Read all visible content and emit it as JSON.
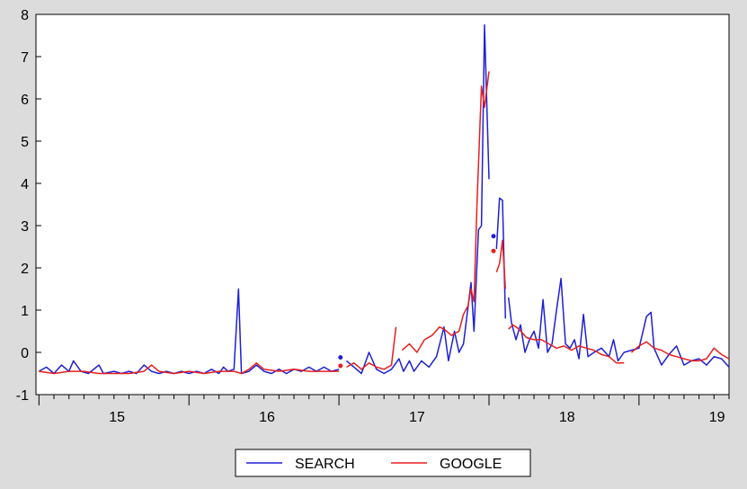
{
  "chart_data": {
    "type": "line",
    "title": "",
    "xlabel": "",
    "ylabel": "",
    "xlim": [
      14.48,
      19.1
    ],
    "ylim": [
      -1,
      8
    ],
    "xticks": [
      "15",
      "16",
      "17",
      "18",
      "19"
    ],
    "yticks": [
      "-1",
      "0",
      "1",
      "2",
      "3",
      "4",
      "5",
      "6",
      "7",
      "8"
    ],
    "grid": false,
    "legend_position": "bottom-center",
    "series": [
      {
        "name": "SEARCH",
        "color": "#1f1fd6",
        "points": [
          [
            14.5,
            -0.45
          ],
          [
            14.55,
            -0.35
          ],
          [
            14.6,
            -0.5
          ],
          [
            14.65,
            -0.3
          ],
          [
            14.7,
            -0.45
          ],
          [
            14.73,
            -0.2
          ],
          [
            14.78,
            -0.45
          ],
          [
            14.83,
            -0.5
          ],
          [
            14.9,
            -0.3
          ],
          [
            14.93,
            -0.5
          ],
          [
            15.0,
            -0.45
          ],
          [
            15.05,
            -0.5
          ],
          [
            15.1,
            -0.45
          ],
          [
            15.15,
            -0.5
          ],
          [
            15.2,
            -0.3
          ],
          [
            15.25,
            -0.45
          ],
          [
            15.3,
            -0.5
          ],
          [
            15.35,
            -0.45
          ],
          [
            15.4,
            -0.5
          ],
          [
            15.45,
            -0.45
          ],
          [
            15.5,
            -0.5
          ],
          [
            15.55,
            -0.45
          ],
          [
            15.6,
            -0.5
          ],
          [
            15.65,
            -0.4
          ],
          [
            15.7,
            -0.5
          ],
          [
            15.73,
            -0.35
          ],
          [
            15.76,
            -0.45
          ],
          [
            15.8,
            -0.4
          ],
          [
            15.83,
            1.5
          ],
          [
            15.85,
            -0.5
          ],
          [
            15.9,
            -0.45
          ],
          [
            15.95,
            -0.3
          ],
          [
            16.0,
            -0.45
          ],
          [
            16.05,
            -0.5
          ],
          [
            16.1,
            -0.4
          ],
          [
            16.15,
            -0.5
          ],
          [
            16.2,
            -0.4
          ],
          [
            16.25,
            -0.45
          ],
          [
            16.3,
            -0.35
          ],
          [
            16.35,
            -0.45
          ],
          [
            16.4,
            -0.35
          ],
          [
            16.45,
            -0.45
          ],
          [
            16.5,
            -0.4
          ],
          null,
          [
            16.55,
            -0.2
          ],
          [
            16.6,
            -0.35
          ],
          [
            16.65,
            -0.5
          ],
          [
            16.7,
            0.0
          ],
          [
            16.75,
            -0.4
          ],
          [
            16.8,
            -0.5
          ],
          [
            16.85,
            -0.4
          ],
          [
            16.9,
            -0.15
          ],
          [
            16.93,
            -0.45
          ],
          [
            16.97,
            -0.2
          ],
          [
            17.0,
            -0.45
          ],
          [
            17.05,
            -0.2
          ],
          [
            17.1,
            -0.35
          ],
          [
            17.15,
            -0.1
          ],
          [
            17.2,
            0.6
          ],
          [
            17.23,
            -0.2
          ],
          [
            17.27,
            0.5
          ],
          [
            17.3,
            0.0
          ],
          [
            17.33,
            0.2
          ],
          [
            17.38,
            1.65
          ],
          [
            17.4,
            0.5
          ],
          [
            17.43,
            2.9
          ],
          [
            17.45,
            3.0
          ],
          [
            17.47,
            7.75
          ],
          [
            17.5,
            4.1
          ],
          null,
          [
            17.55,
            2.45
          ],
          [
            17.57,
            3.65
          ],
          [
            17.59,
            3.6
          ],
          [
            17.61,
            0.8
          ],
          null,
          [
            17.63,
            1.3
          ],
          [
            17.65,
            0.7
          ],
          [
            17.68,
            0.3
          ],
          [
            17.71,
            0.65
          ],
          [
            17.74,
            0.0
          ],
          [
            17.77,
            0.3
          ],
          [
            17.8,
            0.5
          ],
          [
            17.83,
            0.1
          ],
          [
            17.86,
            1.25
          ],
          [
            17.89,
            0.0
          ],
          [
            17.92,
            0.2
          ],
          [
            17.95,
            1.0
          ],
          [
            17.98,
            1.75
          ],
          [
            18.01,
            0.2
          ],
          [
            18.04,
            0.1
          ],
          [
            18.07,
            0.3
          ],
          [
            18.1,
            -0.15
          ],
          [
            18.13,
            0.9
          ],
          [
            18.16,
            -0.1
          ],
          [
            18.2,
            0.0
          ],
          [
            18.25,
            0.1
          ],
          [
            18.3,
            -0.1
          ],
          [
            18.33,
            0.3
          ],
          [
            18.36,
            -0.2
          ],
          [
            18.4,
            0.0
          ],
          [
            18.45,
            0.05
          ],
          [
            18.5,
            0.1
          ],
          [
            18.55,
            0.85
          ],
          [
            18.58,
            0.95
          ],
          [
            18.6,
            0.1
          ],
          [
            18.65,
            -0.3
          ],
          [
            18.7,
            -0.05
          ],
          [
            18.75,
            0.15
          ],
          [
            18.8,
            -0.3
          ],
          [
            18.85,
            -0.2
          ],
          [
            18.9,
            -0.15
          ],
          [
            18.95,
            -0.3
          ],
          [
            19.0,
            -0.1
          ],
          [
            19.05,
            -0.15
          ],
          [
            19.1,
            -0.35
          ]
        ]
      },
      {
        "name": "GOOGLE",
        "color": "#e81e1e",
        "points": [
          [
            14.5,
            -0.45
          ],
          [
            14.6,
            -0.5
          ],
          [
            14.7,
            -0.45
          ],
          [
            14.8,
            -0.45
          ],
          [
            14.9,
            -0.5
          ],
          [
            15.0,
            -0.5
          ],
          [
            15.1,
            -0.5
          ],
          [
            15.2,
            -0.45
          ],
          [
            15.25,
            -0.3
          ],
          [
            15.3,
            -0.45
          ],
          [
            15.4,
            -0.5
          ],
          [
            15.5,
            -0.45
          ],
          [
            15.6,
            -0.5
          ],
          [
            15.7,
            -0.45
          ],
          [
            15.8,
            -0.45
          ],
          [
            15.85,
            -0.5
          ],
          [
            15.9,
            -0.4
          ],
          [
            15.95,
            -0.25
          ],
          [
            16.0,
            -0.4
          ],
          [
            16.1,
            -0.45
          ],
          [
            16.2,
            -0.4
          ],
          [
            16.3,
            -0.45
          ],
          [
            16.4,
            -0.45
          ],
          [
            16.5,
            -0.45
          ],
          null,
          [
            16.55,
            -0.35
          ],
          [
            16.6,
            -0.25
          ],
          [
            16.65,
            -0.4
          ],
          [
            16.7,
            -0.25
          ],
          [
            16.75,
            -0.35
          ],
          [
            16.8,
            -0.4
          ],
          [
            16.85,
            -0.3
          ],
          [
            16.88,
            0.6
          ],
          null,
          [
            16.92,
            0.05
          ],
          [
            16.97,
            0.2
          ],
          [
            17.02,
            0.0
          ],
          [
            17.07,
            0.3
          ],
          [
            17.12,
            0.4
          ],
          [
            17.17,
            0.6
          ],
          [
            17.2,
            0.55
          ],
          [
            17.25,
            0.4
          ],
          [
            17.3,
            0.5
          ],
          [
            17.33,
            0.9
          ],
          [
            17.36,
            1.1
          ],
          [
            17.38,
            1.5
          ],
          [
            17.4,
            1.2
          ],
          [
            17.42,
            3.5
          ],
          [
            17.45,
            6.3
          ],
          [
            17.47,
            5.8
          ],
          [
            17.5,
            6.65
          ],
          null,
          [
            17.55,
            1.9
          ],
          [
            17.57,
            2.1
          ],
          [
            17.59,
            2.65
          ],
          [
            17.61,
            1.5
          ],
          null,
          [
            17.63,
            0.55
          ],
          [
            17.66,
            0.65
          ],
          [
            17.7,
            0.55
          ],
          [
            17.75,
            0.35
          ],
          [
            17.8,
            0.3
          ],
          [
            17.85,
            0.3
          ],
          [
            17.9,
            0.2
          ],
          [
            17.95,
            0.1
          ],
          [
            18.0,
            0.15
          ],
          [
            18.05,
            0.05
          ],
          [
            18.1,
            0.15
          ],
          [
            18.15,
            0.1
          ],
          [
            18.2,
            0.05
          ],
          [
            18.25,
            -0.05
          ],
          [
            18.3,
            -0.1
          ],
          [
            18.35,
            -0.25
          ],
          [
            18.4,
            -0.25
          ],
          null,
          [
            18.45,
            0.0
          ],
          [
            18.5,
            0.15
          ],
          [
            18.55,
            0.25
          ],
          [
            18.6,
            0.1
          ],
          [
            18.65,
            0.05
          ],
          [
            18.7,
            -0.05
          ],
          [
            18.75,
            -0.1
          ],
          [
            18.8,
            -0.15
          ],
          [
            18.85,
            -0.2
          ],
          [
            18.9,
            -0.2
          ],
          [
            18.95,
            -0.15
          ],
          [
            19.0,
            0.1
          ],
          [
            19.05,
            -0.05
          ],
          [
            19.1,
            -0.15
          ]
        ]
      }
    ],
    "markers": [
      {
        "series": "SEARCH",
        "x": 16.51,
        "y": -0.12
      },
      {
        "series": "GOOGLE",
        "x": 16.51,
        "y": -0.32
      },
      {
        "series": "SEARCH",
        "x": 17.53,
        "y": 2.75
      },
      {
        "series": "GOOGLE",
        "x": 17.53,
        "y": 2.4
      }
    ]
  }
}
